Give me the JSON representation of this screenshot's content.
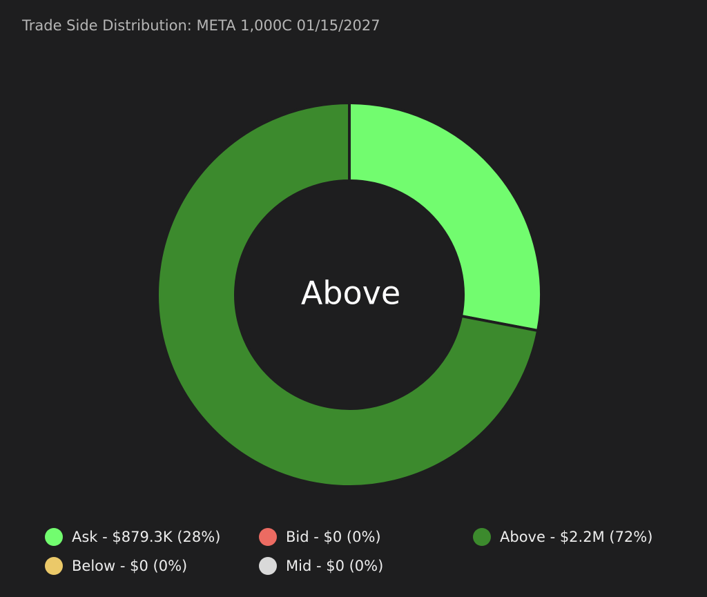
{
  "chart_data": {
    "type": "pie",
    "donut": true,
    "title": "Trade Side Distribution: META 1,000C 01/15/2027",
    "center_label": "Above",
    "categories": [
      "Ask - $879.3K (28%)",
      "Bid - $0 (0%)",
      "Above - $2.2M (72%)",
      "Below - $0 (0%)",
      "Mid - $0 (0%)"
    ],
    "values": [
      28,
      0,
      72,
      0,
      0
    ],
    "colors": [
      "#72fc6f",
      "#ec6b62",
      "#3c8a2d",
      "#ebc969",
      "#d9d9d9"
    ],
    "legend": "bottom"
  }
}
